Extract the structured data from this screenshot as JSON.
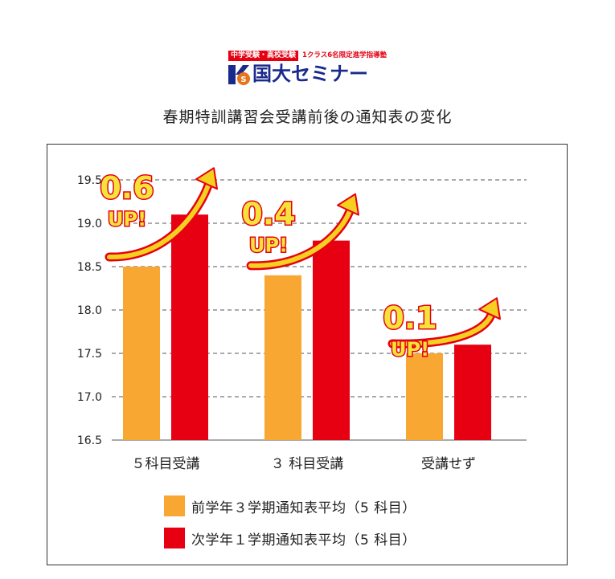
{
  "logo": {
    "tag": "中学受験・高校受験",
    "note": "1クラス6名限定進学指導塾",
    "name": "国大セミナー"
  },
  "title": "春期特訓講習会受講前後の通知表の変化",
  "colors": {
    "before": "#f8a832",
    "after": "#e60012",
    "badge_fill": "#f6e33a",
    "badge_stroke": "#e60012",
    "arrow": "#f5d020"
  },
  "chart_data": {
    "type": "bar",
    "categories": [
      "５科目受講",
      "３ 科目受講",
      "受講せず"
    ],
    "series": [
      {
        "name": "前学年３学期通知表平均（5 科目）",
        "values": [
          18.5,
          18.4,
          17.5
        ]
      },
      {
        "name": "次学年１学期通知表平均（5 科目）",
        "values": [
          19.1,
          18.8,
          17.6
        ]
      }
    ],
    "ylim": [
      16.5,
      19.5
    ],
    "yticks": [
      "16.5",
      "17.0",
      "17.5",
      "18.0",
      "18.5",
      "19.0",
      "19.5"
    ],
    "grid": true,
    "gridstyle": "dashed",
    "annotations": [
      {
        "value": "0.6",
        "suffix": "UP!"
      },
      {
        "value": "0.4",
        "suffix": "UP!"
      },
      {
        "value": "0.1",
        "suffix": "UP!"
      }
    ],
    "legend_position": "bottom"
  }
}
